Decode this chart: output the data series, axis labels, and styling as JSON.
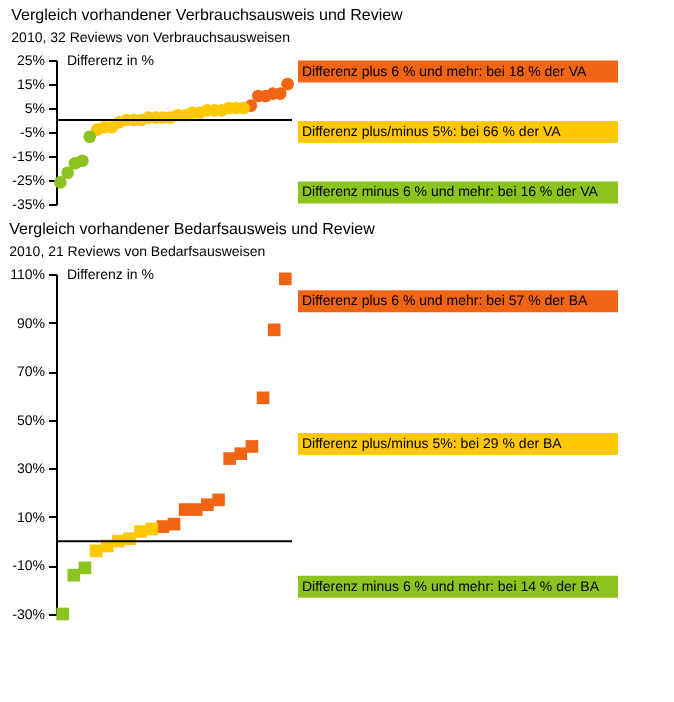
{
  "chart_data": [
    {
      "type": "scatter",
      "title": "Vergleich vorhandener Verbrauchsausweis und Review",
      "ylabel": "Differenz in %",
      "annotations": [
        "2010, 32 Reviews von Verbrauchsausweisen"
      ],
      "categories": [
        null,
        null,
        null,
        null,
        null,
        null,
        null,
        null,
        null,
        null,
        null,
        null,
        null,
        null,
        null,
        null,
        null,
        null,
        null,
        null,
        null,
        null,
        null,
        null,
        null,
        null,
        null,
        null,
        null,
        null,
        null,
        null
      ],
      "series": [
        {
          "name": "Differenz plus 6 % und mehr: bei 18 % der VA",
          "color": "#f06414",
          "values": [
            null,
            null,
            null,
            null,
            null,
            null,
            null,
            null,
            null,
            null,
            null,
            null,
            null,
            null,
            null,
            null,
            null,
            null,
            null,
            null,
            null,
            null,
            null,
            null,
            null,
            null,
            6,
            10,
            10,
            11,
            11,
            15
          ]
        },
        {
          "name": "Differenz plus/minus 5%: bei 66 % der VA",
          "color": "#ffc800",
          "values": [
            null,
            null,
            null,
            null,
            null,
            -4,
            -3,
            -3,
            -1,
            0,
            0,
            0,
            1,
            1,
            1,
            1,
            2,
            2,
            3,
            3,
            4,
            4,
            4,
            5,
            5,
            5,
            null,
            null,
            null,
            null,
            null,
            null
          ]
        },
        {
          "name": "Differenz minus 6 % und mehr: bei 16 % der VA",
          "color": "#8cc31e",
          "values": [
            -26,
            -22,
            -18,
            -17,
            -7,
            null,
            null,
            null,
            null,
            null,
            null,
            null,
            null,
            null,
            null,
            null,
            null,
            null,
            null,
            null,
            null,
            null,
            null,
            null,
            null,
            null,
            null,
            null,
            null,
            null,
            null,
            null
          ]
        }
      ],
      "ylim": [
        -35,
        25
      ],
      "yticks": [
        {
          "value": -35,
          "label": "-35%"
        },
        {
          "value": -25,
          "label": "-25%"
        },
        {
          "value": -15,
          "label": "-15%"
        },
        {
          "value": -5,
          "label": "-5%"
        },
        {
          "value": 5,
          "label": "5%"
        },
        {
          "value": 15,
          "label": "15%"
        },
        {
          "value": 25,
          "label": "25%"
        }
      ],
      "marker": "circle",
      "legend": "right",
      "tick_labels": "y",
      "grid": false
    },
    {
      "type": "scatter",
      "title": "Vergleich vorhandener Bedarfsausweis und Review",
      "ylabel": "Differenz in %",
      "annotations": [
        "2010, 21 Reviews von Bedarfsausweisen"
      ],
      "categories": [
        null,
        null,
        null,
        null,
        null,
        null,
        null,
        null,
        null,
        null,
        null,
        null,
        null,
        null,
        null,
        null,
        null,
        null,
        null,
        null,
        null
      ],
      "series": [
        {
          "name": "Differenz plus 6 % und mehr: bei 57 % der BA",
          "color": "#f06414",
          "values": [
            null,
            null,
            null,
            null,
            null,
            null,
            null,
            null,
            null,
            6,
            7,
            13,
            13,
            15,
            17,
            34,
            36,
            39,
            59,
            87,
            108
          ]
        },
        {
          "name": "Differenz plus/minus 5%: bei 29 % der BA",
          "color": "#ffc800",
          "values": [
            null,
            null,
            null,
            -4,
            -2,
            0,
            1,
            4,
            5,
            null,
            null,
            null,
            null,
            null,
            null,
            null,
            null,
            null,
            null,
            null,
            null
          ]
        },
        {
          "name": "Differenz minus 6 % und mehr: bei 14 % der BA",
          "color": "#8cc31e",
          "values": [
            -30,
            -14,
            -11,
            null,
            null,
            null,
            null,
            null,
            null,
            null,
            null,
            null,
            null,
            null,
            null,
            null,
            null,
            null,
            null,
            null,
            null
          ]
        }
      ],
      "ylim": [
        -30,
        110
      ],
      "yticks": [
        {
          "value": -30,
          "label": "-30%"
        },
        {
          "value": -10,
          "label": "-10%"
        },
        {
          "value": 10,
          "label": "10%"
        },
        {
          "value": 30,
          "label": "30%"
        },
        {
          "value": 50,
          "label": "50%"
        },
        {
          "value": 70,
          "label": "70%"
        },
        {
          "value": 90,
          "label": "90%"
        },
        {
          "value": 110,
          "label": "110%"
        }
      ],
      "marker": "square",
      "legend": "right",
      "tick_labels": "y",
      "grid": false
    }
  ]
}
